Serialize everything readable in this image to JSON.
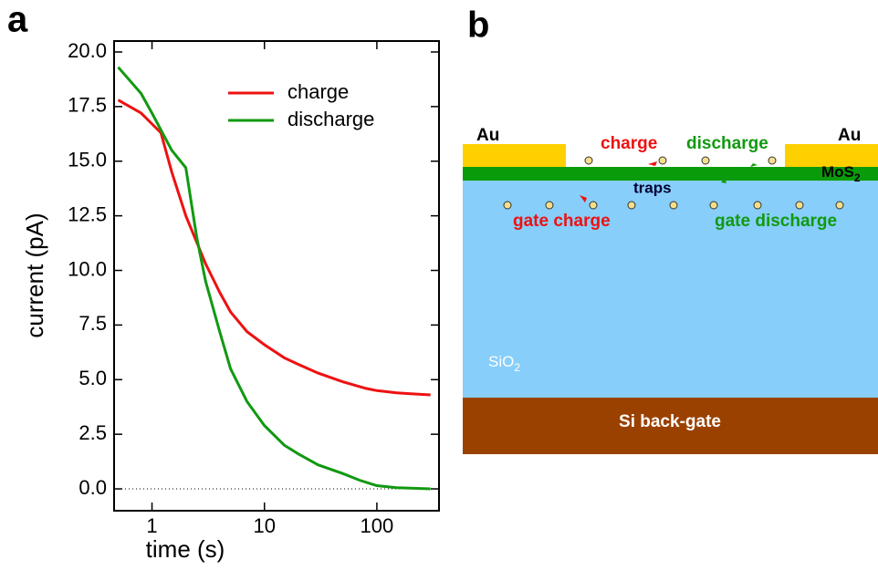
{
  "panel_labels": [
    "a",
    "b"
  ],
  "chart_data": {
    "type": "line",
    "x_label": "time (s)",
    "y_label": "current (pA)",
    "xlim": [
      0.46,
      357
    ],
    "ylim": [
      -1,
      20.5
    ],
    "x_log": true,
    "xticks": [
      1,
      10,
      100
    ],
    "yticks": [
      {
        "value": 0,
        "label": "0.0"
      },
      {
        "value": 2.5,
        "label": "2.5"
      },
      {
        "value": 5,
        "label": "5.0"
      },
      {
        "value": 7.5,
        "label": "7.5"
      },
      {
        "value": 10,
        "label": "10.0"
      },
      {
        "value": 12.5,
        "label": "12.5"
      },
      {
        "value": 15,
        "label": "15.0"
      },
      {
        "value": 17.5,
        "label": "17.5"
      },
      {
        "value": 20,
        "label": "20.0"
      }
    ],
    "hline": 0,
    "legend": "upper right",
    "series": [
      {
        "name": "charge",
        "color": "#ee1111",
        "x": [
          0.5,
          0.8,
          1.2,
          1.5,
          2,
          3,
          4,
          5,
          7,
          10,
          15,
          20,
          30,
          50,
          80,
          100,
          150,
          200,
          300
        ],
        "values": [
          17.8,
          17.2,
          16.3,
          14.5,
          12.5,
          10.3,
          9.0,
          8.1,
          7.2,
          6.6,
          6.0,
          5.7,
          5.3,
          4.9,
          4.6,
          4.5,
          4.4,
          4.35,
          4.3
        ]
      },
      {
        "name": "discharge",
        "color": "#119911",
        "x": [
          0.5,
          0.8,
          1,
          1.5,
          2,
          2.5,
          3,
          4,
          5,
          7,
          10,
          15,
          20,
          30,
          50,
          70,
          100,
          150,
          300
        ],
        "values": [
          19.3,
          18.1,
          17.2,
          15.5,
          14.7,
          11.5,
          9.5,
          7.2,
          5.5,
          4.0,
          2.9,
          2.0,
          1.6,
          1.1,
          0.7,
          0.4,
          0.15,
          0.05,
          0.0
        ]
      }
    ]
  },
  "diagram": {
    "au_left": "Au",
    "au_right": "Au",
    "charge": "charge",
    "discharge": "discharge",
    "mos2": {
      "text": "MoS",
      "subscript": "2"
    },
    "traps": "traps",
    "gate_charge": "gate charge",
    "gate_discharge": "gate discharge",
    "sio2": {
      "text": "SiO",
      "subscript": "2"
    },
    "si": "Si back-gate"
  }
}
